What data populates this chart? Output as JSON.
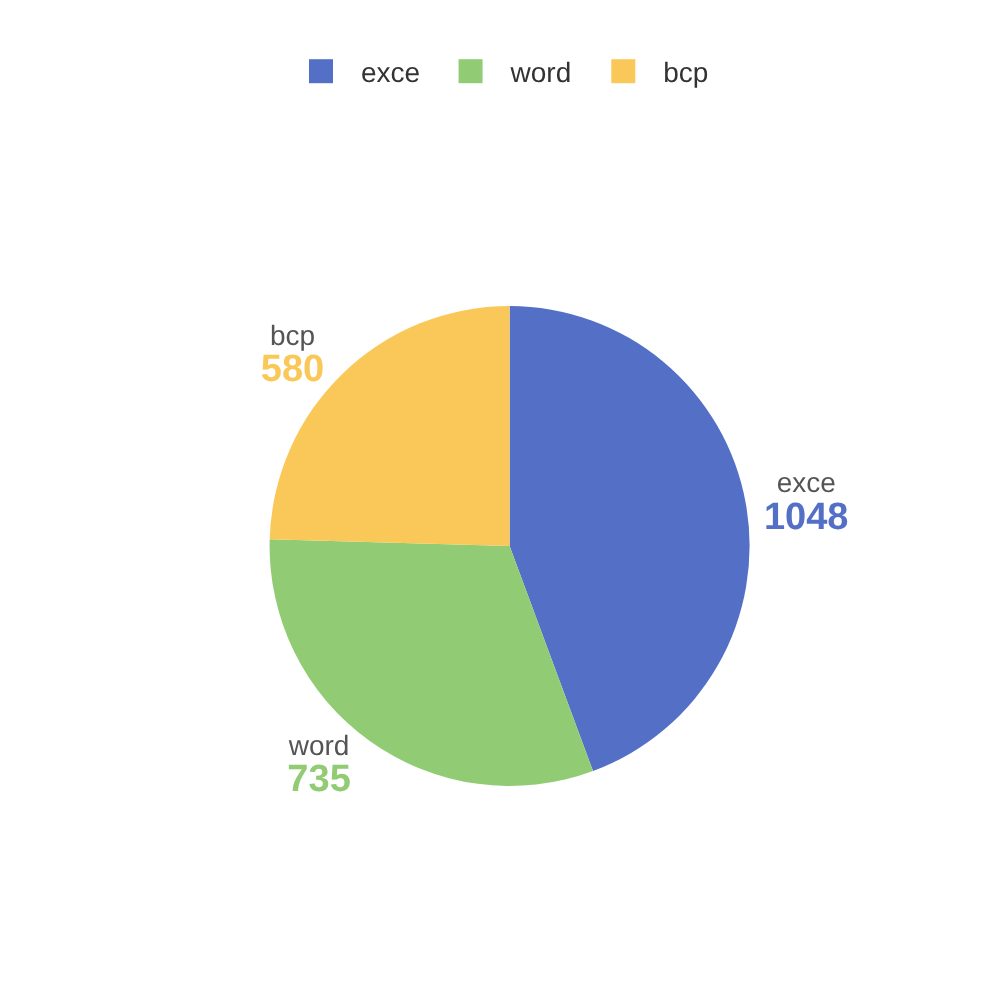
{
  "chart_data": {
    "type": "pie",
    "categories": [
      "exce",
      "word",
      "bcp"
    ],
    "values": [
      1048,
      735,
      580
    ],
    "colors": [
      "#5470c6",
      "#91cc75",
      "#fac858"
    ],
    "data_labels": true,
    "legend": "top"
  }
}
